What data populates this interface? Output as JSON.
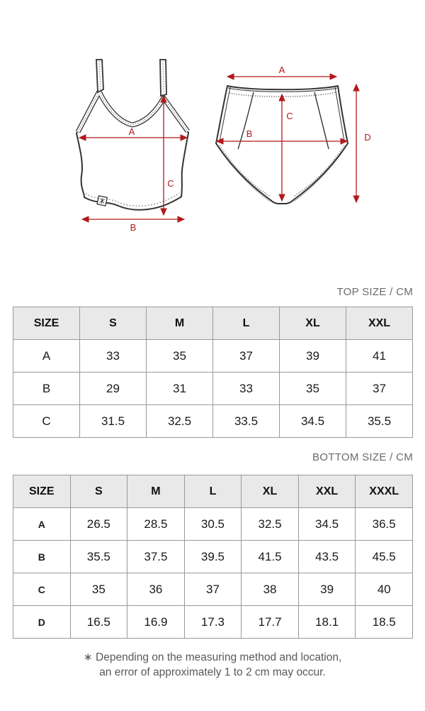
{
  "colors": {
    "accent_red": "#b2191b",
    "outline_dark": "#333333",
    "table_border": "#999999",
    "table_header_bg": "#e9e9e9",
    "title_gray": "#6b6b6b",
    "note_gray": "#595959"
  },
  "diagram": {
    "top_garment": {
      "a": "A",
      "b": "B",
      "c": "C"
    },
    "bottom_garment": {
      "a": "A",
      "b": "B",
      "c": "C",
      "d": "D"
    }
  },
  "sections": {
    "top": {
      "title": "TOP SIZE / CM",
      "table": {
        "headers": [
          "SIZE",
          "S",
          "M",
          "L",
          "XL",
          "XXL"
        ],
        "rows": [
          {
            "label": "A",
            "values": [
              "33",
              "35",
              "37",
              "39",
              "41"
            ]
          },
          {
            "label": "B",
            "values": [
              "29",
              "31",
              "33",
              "35",
              "37"
            ]
          },
          {
            "label": "C",
            "values": [
              "31.5",
              "32.5",
              "33.5",
              "34.5",
              "35.5"
            ]
          }
        ]
      }
    },
    "bottom": {
      "title": "BOTTOM SIZE / CM",
      "table": {
        "headers": [
          "SIZE",
          "S",
          "M",
          "L",
          "XL",
          "XXL",
          "XXXL"
        ],
        "rows": [
          {
            "label": "A",
            "values": [
              "26.5",
              "28.5",
              "30.5",
              "32.5",
              "34.5",
              "36.5"
            ]
          },
          {
            "label": "B",
            "values": [
              "35.5",
              "37.5",
              "39.5",
              "41.5",
              "43.5",
              "45.5"
            ]
          },
          {
            "label": "C",
            "values": [
              "35",
              "36",
              "37",
              "38",
              "39",
              "40"
            ]
          },
          {
            "label": "D",
            "values": [
              "16.5",
              "16.9",
              "17.3",
              "17.7",
              "18.1",
              "18.5"
            ]
          }
        ]
      }
    }
  },
  "note": {
    "line1": "∗ Depending on the measuring method and location,",
    "line2": "an error of approximately 1 to 2 cm may occur."
  }
}
